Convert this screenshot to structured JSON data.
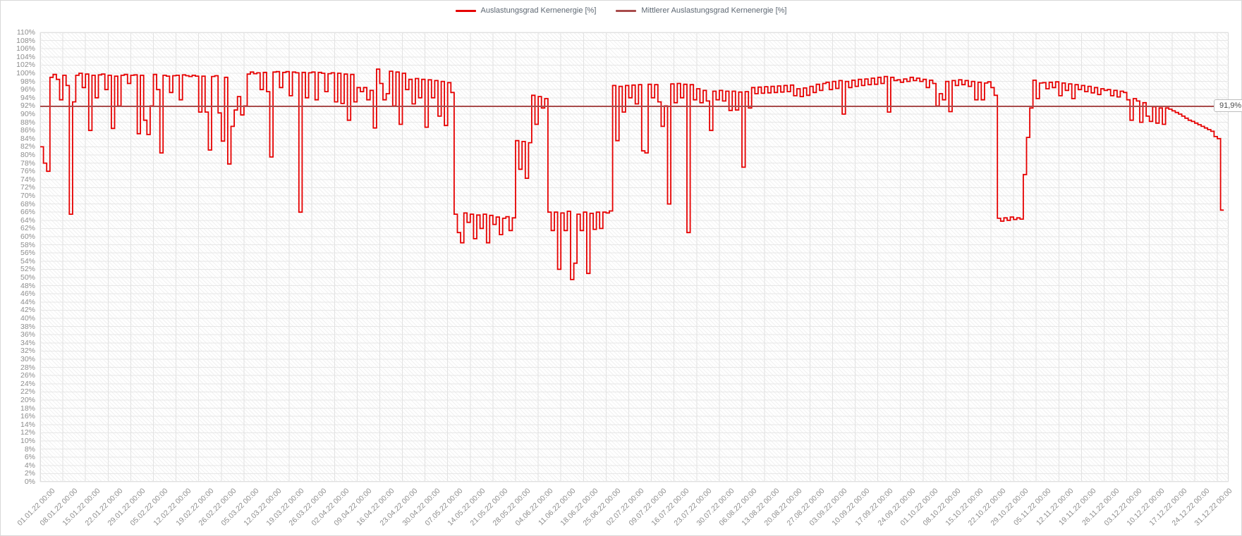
{
  "legend": [
    {
      "label": "Auslastungsgrad Kernenergie [%]",
      "color": "#e60000"
    },
    {
      "label": "Mittlerer Auslastungsgrad Kernenergie [%]",
      "color": "#a84b4b"
    }
  ],
  "chart_data": {
    "type": "line",
    "title": "",
    "xlabel": "",
    "ylabel": "",
    "ylim": [
      0,
      110
    ],
    "ytick_step": 2,
    "ytick_suffix": "%",
    "grid": "on",
    "legend_position": "top-center",
    "x_tick_labels": [
      "01.01.22 00:00",
      "08.01.22 00:00",
      "15.01.22 00:00",
      "22.01.22 00:00",
      "29.01.22 00:00",
      "05.02.22 00:00",
      "12.02.22 00:00",
      "19.02.22 00:00",
      "26.02.22 00:00",
      "05.03.22 00:00",
      "12.03.22 00:00",
      "19.03.22 00:00",
      "26.03.22 00:00",
      "02.04.22 00:00",
      "09.04.22 00:00",
      "16.04.22 00:00",
      "23.04.22 00:00",
      "30.04.22 00:00",
      "07.05.22 00:00",
      "14.05.22 00:00",
      "21.05.22 00:00",
      "28.05.22 00:00",
      "04.06.22 00:00",
      "11.06.22 00:00",
      "18.06.22 00:00",
      "25.06.22 00:00",
      "02.07.22 00:00",
      "09.07.22 00:00",
      "16.07.22 00:00",
      "23.07.22 00:00",
      "30.07.22 00:00",
      "06.08.22 00:00",
      "13.08.22 00:00",
      "20.08.22 00:00",
      "27.08.22 00:00",
      "03.09.22 00:00",
      "10.09.22 00:00",
      "17.09.22 00:00",
      "24.09.22 00:00",
      "01.10.22 00:00",
      "08.10.22 00:00",
      "15.10.22 00:00",
      "22.10.22 00:00",
      "29.10.22 00:00",
      "05.11.22 00:00",
      "12.11.22 00:00",
      "19.11.22 00:00",
      "26.11.22 00:00",
      "03.12.22 00:00",
      "10.12.22 00:00",
      "17.12.22 00:00",
      "24.12.22 00:00",
      "31.12.22 00:00"
    ],
    "series": [
      {
        "name": "Auslastungsgrad Kernenergie [%]",
        "color": "#e60000",
        "unit": "%",
        "x_unit": "day-of-year-2022",
        "values": [
          82,
          78,
          76,
          99,
          99.7,
          98.5,
          93.5,
          99.5,
          97,
          65.5,
          93,
          99.5,
          100,
          96.5,
          99.8,
          86,
          99.5,
          94,
          99.6,
          99.8,
          96,
          99.5,
          86.5,
          99.3,
          92,
          99.5,
          99.7,
          97.5,
          99.5,
          99.6,
          85.2,
          99.5,
          88.5,
          85,
          92,
          99.7,
          96,
          80.5,
          99.5,
          99.3,
          95.3,
          99.4,
          99.5,
          93.5,
          99.6,
          99.4,
          99.2,
          99.5,
          99.3,
          90.5,
          99.3,
          90.5,
          81.2,
          99.2,
          99.4,
          90.3,
          83.4,
          99,
          77.8,
          87,
          91,
          94.3,
          89.8,
          92,
          99.8,
          100.3,
          99.9,
          100.1,
          96,
          100.2,
          95.5,
          79.5,
          100.3,
          100.4,
          96.5,
          100.2,
          100.4,
          94.5,
          100.3,
          100.1,
          66,
          100.2,
          94,
          100.1,
          100.3,
          93.5,
          100.2,
          100,
          95.5,
          99.9,
          100.1,
          93,
          100,
          92.6,
          99.8,
          88.5,
          99.7,
          93,
          96.5,
          95.5,
          96.5,
          93.5,
          95.8,
          86.6,
          101,
          97.5,
          93.5,
          95,
          100.5,
          92,
          100.3,
          87.5,
          100,
          96,
          98.5,
          92.5,
          98.7,
          94,
          98.5,
          86.8,
          98.4,
          94,
          98.2,
          89.5,
          98,
          87.2,
          97.7,
          95.3,
          65.5,
          61,
          58.5,
          65.8,
          63.5,
          65.5,
          59.5,
          65.3,
          62,
          65.5,
          58.5,
          65.2,
          63,
          64.8,
          60.5,
          64.5,
          64.9,
          61.5,
          64.6,
          83.5,
          76.5,
          83.3,
          74.3,
          83,
          94.6,
          87.5,
          94.3,
          91.5,
          93.8,
          66,
          61.5,
          66,
          52,
          65.8,
          61.5,
          66.2,
          49.5,
          53.5,
          65.5,
          61.5,
          66,
          51,
          65.7,
          61.8,
          66,
          62,
          66,
          65.8,
          66.3,
          97,
          83.5,
          96.8,
          90.5,
          97,
          94,
          97.1,
          92.5,
          97.2,
          81,
          80.5,
          97.3,
          94,
          97.2,
          93,
          87,
          92,
          68,
          97.4,
          92.8,
          97.5,
          94,
          97.3,
          61,
          97.2,
          93.5,
          96.2,
          92.8,
          95.8,
          93.2,
          86,
          95.6,
          93.5,
          95.8,
          93.2,
          95.6,
          90.9,
          95.6,
          91,
          95.4,
          77,
          95.5,
          91.5,
          96.5,
          95,
          96.6,
          95.1,
          96.7,
          95.2,
          96.8,
          95.3,
          96.9,
          95.4,
          97,
          95.5,
          97.1,
          94.5,
          96.2,
          94.3,
          96.4,
          94.6,
          96.8,
          95.3,
          97.3,
          95.8,
          97.5,
          97.8,
          96,
          98,
          96.3,
          98.2,
          90,
          98,
          96.5,
          98.3,
          96.8,
          98.5,
          97,
          98.6,
          97.2,
          98.8,
          97.3,
          99,
          97.5,
          99.2,
          90.5,
          99,
          98.2,
          98.4,
          97.8,
          98.6,
          98,
          99,
          98.2,
          98.8,
          98,
          98.5,
          96.5,
          98.3,
          97.5,
          92,
          95,
          93.5,
          98,
          90.6,
          98.2,
          97,
          98.4,
          97.2,
          98.2,
          96.8,
          98,
          93.5,
          97.8,
          93.5,
          97.6,
          97.9,
          96.5,
          94.6,
          64.5,
          63.8,
          64.6,
          64,
          64.8,
          64.2,
          64.6,
          64.3,
          75.2,
          84.3,
          91.5,
          98.3,
          93.8,
          97.6,
          97.7,
          96.2,
          97.8,
          96.5,
          97.9,
          94.5,
          97.6,
          95.8,
          97.4,
          93.8,
          97.2,
          96,
          97,
          95.5,
          96.8,
          95.2,
          96.5,
          94.8,
          96.2,
          95.8,
          96,
          94.5,
          95.8,
          94.2,
          95.6,
          95.3,
          93.5,
          88.5,
          93.8,
          93.2,
          88,
          92.8,
          89.5,
          88.2,
          91.8,
          87.8,
          91.5,
          87.5,
          91.5,
          91.2,
          90.8,
          90.4,
          90,
          89.5,
          89,
          88.5,
          88.2,
          87.8,
          87.4,
          87,
          86.6,
          86.2,
          85.8,
          84.5,
          84,
          66.5
        ]
      },
      {
        "name": "Mittlerer Auslastungsgrad Kernenergie [%]",
        "color": "#a84b4b",
        "type": "constant",
        "value": 91.9
      }
    ],
    "mean": {
      "value": 91.9,
      "label": "91,9%"
    }
  }
}
